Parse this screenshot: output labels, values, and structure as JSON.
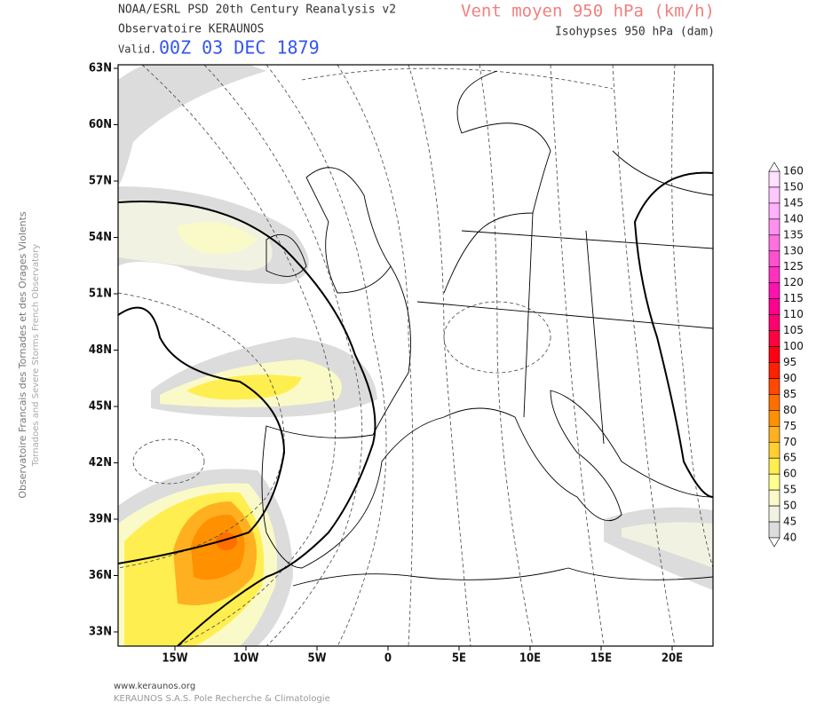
{
  "header": {
    "source": "NOAA/ESRL PSD 20th Century Reanalysis v2",
    "observatory": "Observatoire KERAUNOS",
    "valid_label": "Valid.",
    "valid_time": "00Z 03 DEC 1879",
    "title": "Vent moyen 950 hPa (km/h)",
    "subtitle": "Isohypses 950 hPa (dam)"
  },
  "map": {
    "lat_labels": [
      "63N",
      "60N",
      "57N",
      "54N",
      "51N",
      "48N",
      "45N",
      "42N",
      "39N",
      "36N",
      "33N"
    ],
    "lon_labels": [
      "15W",
      "10W",
      "5W",
      "0",
      "5E",
      "10E",
      "15E",
      "20E"
    ]
  },
  "colorbar": {
    "levels": [
      160,
      150,
      145,
      140,
      135,
      130,
      125,
      120,
      115,
      110,
      105,
      100,
      95,
      90,
      85,
      80,
      75,
      70,
      65,
      60,
      55,
      50,
      45,
      40
    ],
    "colors": [
      "#ffe0ff",
      "#ffc8ff",
      "#ffb0ff",
      "#ff90f0",
      "#ff70e0",
      "#ff50d0",
      "#ff30c0",
      "#ff10b0",
      "#ff0090",
      "#ff0070",
      "#ff0040",
      "#ff0010",
      "#ff2000",
      "#ff4800",
      "#ff6e00",
      "#ff9000",
      "#ffb020",
      "#ffd030",
      "#ffee50",
      "#ffff90",
      "#fafac8",
      "#f2f2e2",
      "#dcdcdc"
    ]
  },
  "side_text": {
    "french": "Observatoire Francais des Tornades et des Orages Violents",
    "english": "Tornadoes and Severe Storms French Observatory"
  },
  "footer": {
    "url": "www.keraunos.org",
    "company": "KERAUNOS S.A.S. Pole Recherche & Climatologie"
  }
}
